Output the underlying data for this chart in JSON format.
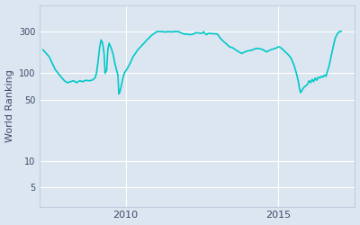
{
  "ylabel": "World Ranking",
  "line_color": "#00c8c8",
  "background_color": "#dce6f0",
  "yticks": [
    5,
    10,
    50,
    100,
    300
  ],
  "ytick_labels": [
    "5",
    "10",
    "50",
    "100",
    "300"
  ],
  "xticks": [
    2010,
    2015
  ],
  "xlim": [
    2007.2,
    2017.5
  ],
  "ylim": [
    3,
    600
  ],
  "grid_color": "#ffffff",
  "line_width": 1.2,
  "data": [
    [
      2007.3,
      185
    ],
    [
      2007.5,
      155
    ],
    [
      2007.7,
      110
    ],
    [
      2007.9,
      90
    ],
    [
      2008.0,
      82
    ],
    [
      2008.1,
      78
    ],
    [
      2008.2,
      80
    ],
    [
      2008.3,
      82
    ],
    [
      2008.4,
      78
    ],
    [
      2008.5,
      82
    ],
    [
      2008.6,
      80
    ],
    [
      2008.7,
      83
    ],
    [
      2008.8,
      82
    ],
    [
      2008.9,
      83
    ],
    [
      2009.0,
      88
    ],
    [
      2009.05,
      100
    ],
    [
      2009.1,
      135
    ],
    [
      2009.15,
      195
    ],
    [
      2009.2,
      240
    ],
    [
      2009.25,
      220
    ],
    [
      2009.3,
      165
    ],
    [
      2009.33,
      100
    ],
    [
      2009.38,
      108
    ],
    [
      2009.42,
      185
    ],
    [
      2009.46,
      220
    ],
    [
      2009.5,
      205
    ],
    [
      2009.55,
      185
    ],
    [
      2009.6,
      160
    ],
    [
      2009.65,
      130
    ],
    [
      2009.7,
      110
    ],
    [
      2009.75,
      95
    ],
    [
      2009.78,
      58
    ],
    [
      2009.82,
      62
    ],
    [
      2009.87,
      75
    ],
    [
      2009.92,
      90
    ],
    [
      2009.96,
      100
    ],
    [
      2010.05,
      112
    ],
    [
      2010.15,
      130
    ],
    [
      2010.25,
      155
    ],
    [
      2010.4,
      185
    ],
    [
      2010.55,
      210
    ],
    [
      2010.7,
      240
    ],
    [
      2010.85,
      270
    ],
    [
      2011.0,
      295
    ],
    [
      2011.1,
      300
    ],
    [
      2011.2,
      298
    ],
    [
      2011.3,
      295
    ],
    [
      2011.4,
      298
    ],
    [
      2011.5,
      296
    ],
    [
      2011.7,
      300
    ],
    [
      2011.85,
      285
    ],
    [
      2011.95,
      278
    ],
    [
      2012.0,
      280
    ],
    [
      2012.1,
      275
    ],
    [
      2012.2,
      278
    ],
    [
      2012.3,
      290
    ],
    [
      2012.5,
      285
    ],
    [
      2012.55,
      298
    ],
    [
      2012.6,
      282
    ],
    [
      2012.65,
      275
    ],
    [
      2012.7,
      285
    ],
    [
      2013.0,
      280
    ],
    [
      2013.1,
      250
    ],
    [
      2013.2,
      230
    ],
    [
      2013.3,
      215
    ],
    [
      2013.4,
      200
    ],
    [
      2013.5,
      195
    ],
    [
      2013.6,
      185
    ],
    [
      2013.7,
      175
    ],
    [
      2013.8,
      168
    ],
    [
      2013.9,
      175
    ],
    [
      2014.0,
      180
    ],
    [
      2014.1,
      182
    ],
    [
      2014.2,
      188
    ],
    [
      2014.3,
      192
    ],
    [
      2014.4,
      190
    ],
    [
      2014.5,
      185
    ],
    [
      2014.55,
      180
    ],
    [
      2014.6,
      175
    ],
    [
      2014.65,
      178
    ],
    [
      2014.7,
      182
    ],
    [
      2014.75,
      185
    ],
    [
      2014.8,
      188
    ],
    [
      2014.9,
      192
    ],
    [
      2015.0,
      200
    ],
    [
      2015.05,
      198
    ],
    [
      2015.1,
      192
    ],
    [
      2015.15,
      185
    ],
    [
      2015.2,
      178
    ],
    [
      2015.25,
      172
    ],
    [
      2015.3,
      165
    ],
    [
      2015.35,
      158
    ],
    [
      2015.4,
      150
    ],
    [
      2015.45,
      138
    ],
    [
      2015.5,
      125
    ],
    [
      2015.55,
      110
    ],
    [
      2015.6,
      95
    ],
    [
      2015.65,
      80
    ],
    [
      2015.68,
      68
    ],
    [
      2015.72,
      60
    ],
    [
      2015.75,
      62
    ],
    [
      2015.78,
      65
    ],
    [
      2015.82,
      68
    ],
    [
      2015.85,
      70
    ],
    [
      2015.9,
      72
    ],
    [
      2015.95,
      75
    ],
    [
      2016.0,
      82
    ],
    [
      2016.05,
      78
    ],
    [
      2016.1,
      85
    ],
    [
      2016.15,
      80
    ],
    [
      2016.2,
      88
    ],
    [
      2016.25,
      83
    ],
    [
      2016.3,
      90
    ],
    [
      2016.35,
      88
    ],
    [
      2016.4,
      92
    ],
    [
      2016.45,
      90
    ],
    [
      2016.5,
      95
    ],
    [
      2016.55,
      92
    ],
    [
      2016.6,
      105
    ],
    [
      2016.65,
      120
    ],
    [
      2016.7,
      145
    ],
    [
      2016.75,
      175
    ],
    [
      2016.8,
      210
    ],
    [
      2016.85,
      248
    ],
    [
      2016.9,
      272
    ],
    [
      2016.95,
      290
    ],
    [
      2017.0,
      298
    ],
    [
      2017.05,
      300
    ]
  ]
}
